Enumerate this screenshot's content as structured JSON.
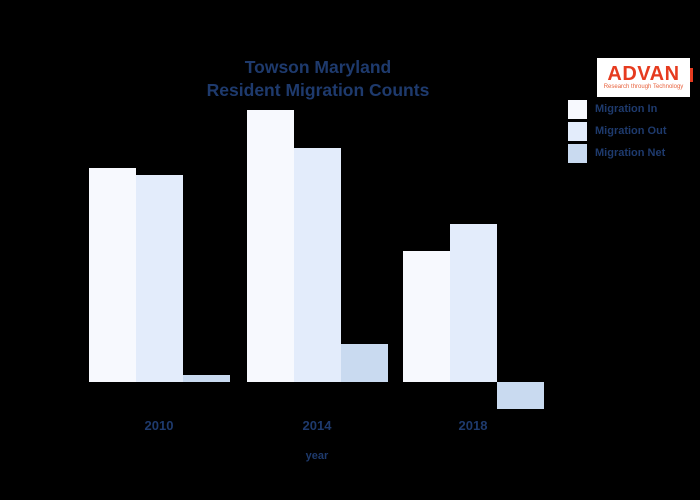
{
  "header": {
    "title_line1": "Towson Maryland",
    "title_line2": "Resident Migration Counts"
  },
  "logo": {
    "name": "ADVAN",
    "tagline": "Research through Technology",
    "text_color": "#e63b1f",
    "background": "#ffffff"
  },
  "axis": {
    "x_label": "year"
  },
  "colors": {
    "background": "#000000",
    "title_text": "#1e3a6d",
    "tick_text": "#1e3a6d"
  },
  "chart_data": {
    "type": "bar",
    "title": "Towson Maryland Resident Migration Counts",
    "xlabel": "year",
    "ylabel": "",
    "categories": [
      "2010",
      "2014",
      "2018"
    ],
    "series": [
      {
        "name": "Migration In",
        "color": "#f7f9fe",
        "values": [
          2140,
          2720,
          1310
        ]
      },
      {
        "name": "Migration Out",
        "color": "#e3ecfb",
        "values": [
          2070,
          2340,
          1580
        ]
      },
      {
        "name": "Migration Net",
        "color": "#c9daf0",
        "values": [
          70,
          380,
          -270
        ]
      }
    ],
    "ylim": [
      -500,
      3000
    ],
    "grid": false,
    "legend_position": "upper right"
  }
}
